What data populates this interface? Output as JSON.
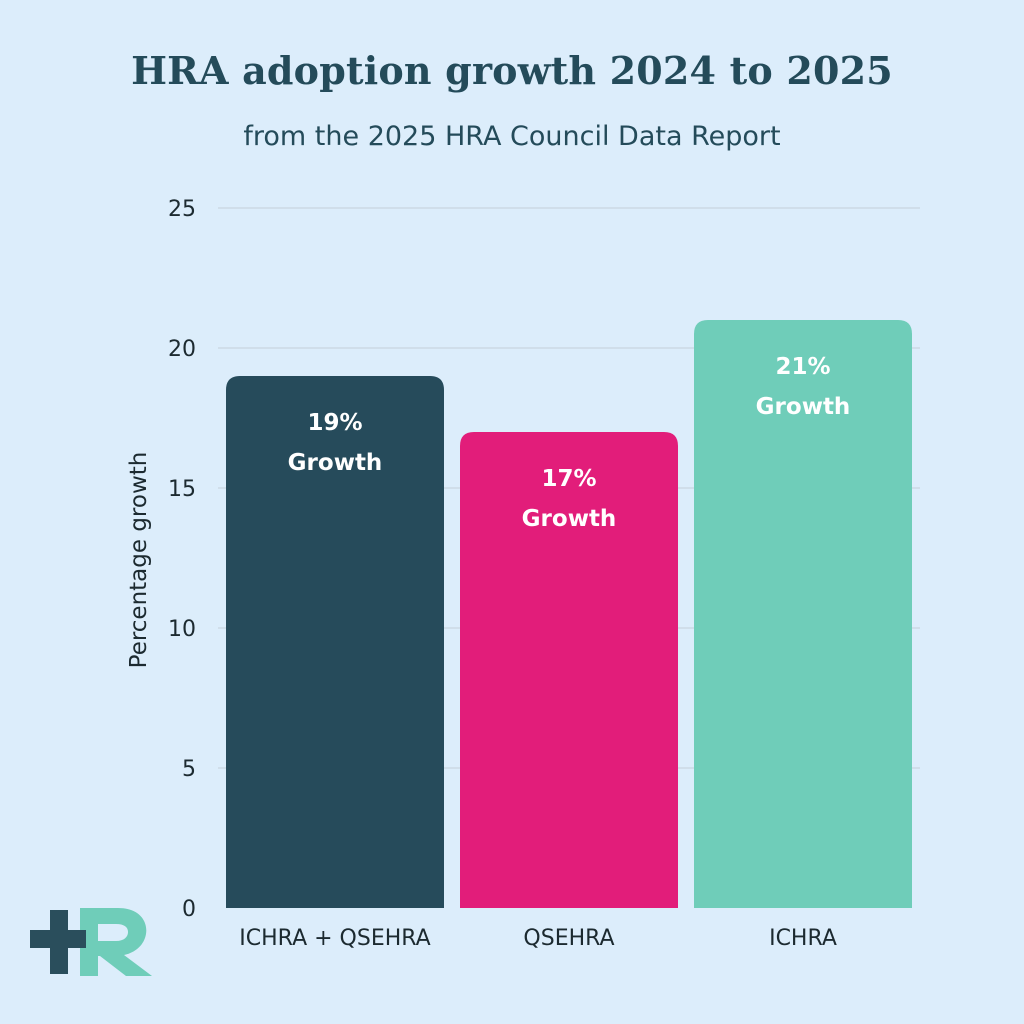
{
  "chart_data": {
    "type": "bar",
    "title": "HRA adoption growth 2024 to 2025",
    "subtitle": "from the 2025 HRA Council Data Report",
    "ylabel": "Percentage growth",
    "xlabel": "",
    "ylim": [
      0,
      25
    ],
    "yticks": [
      0,
      5,
      10,
      15,
      20,
      25
    ],
    "grid": true,
    "categories": [
      "ICHRA + QSEHRA",
      "QSEHRA",
      "ICHRA"
    ],
    "values": [
      19,
      17,
      21
    ],
    "bar_labels": [
      [
        "19%",
        "Growth"
      ],
      [
        "17%",
        "Growth"
      ],
      [
        "21%",
        "Growth"
      ]
    ],
    "colors": [
      "#264b5b",
      "#e21d7a",
      "#6fcdb9"
    ]
  },
  "colors": {
    "background": "#dcedfb",
    "text": "#244b5a",
    "grid": "#c3cfd8",
    "logo_dark": "#2a4e5c",
    "logo_accent": "#6fcdb9"
  },
  "logo": {
    "icon": "plus-r-logo-icon"
  }
}
